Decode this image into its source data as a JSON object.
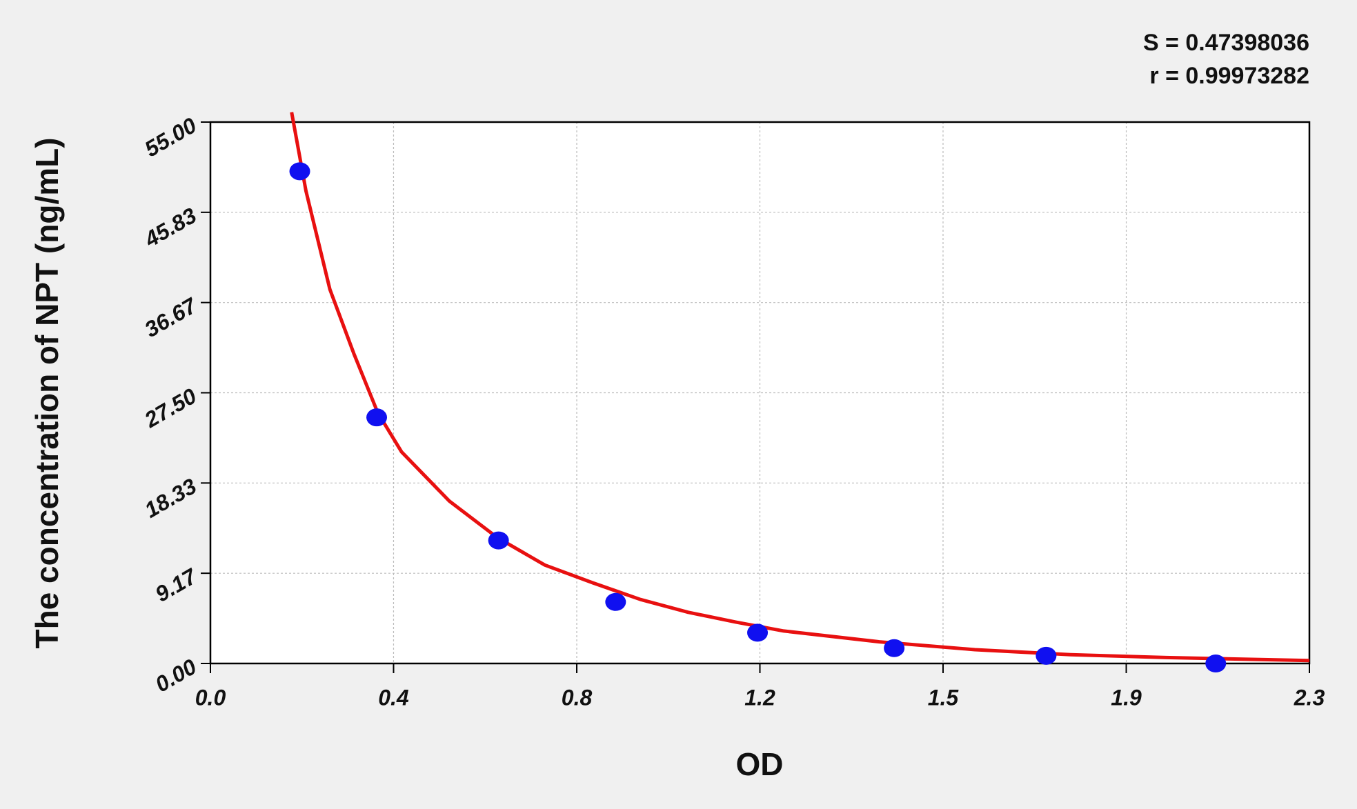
{
  "chart_data": {
    "type": "scatter",
    "x_label": "OD",
    "y_label": "The concentration of NPT (ng/mL)",
    "annotations": [
      "S = 0.47398036",
      "r = 0.99973282"
    ],
    "xlim": [
      0,
      2.3
    ],
    "ylim": [
      0,
      55
    ],
    "xticks": [
      {
        "value": 0,
        "label": "0.0"
      },
      {
        "value": 0.3833,
        "label": "0.4"
      },
      {
        "value": 0.7667,
        "label": "0.8"
      },
      {
        "value": 1.15,
        "label": "1.2"
      },
      {
        "value": 1.5333,
        "label": "1.5"
      },
      {
        "value": 1.9167,
        "label": "1.9"
      },
      2.3
    ],
    "yticks": [
      {
        "value": 0,
        "label": "0.00"
      },
      {
        "value": 9.1667,
        "label": "9.17"
      },
      {
        "value": 18.3333,
        "label": "18.33"
      },
      {
        "value": 27.5,
        "label": "27.50"
      },
      {
        "value": 36.6667,
        "label": "36.67"
      },
      {
        "value": 45.8333,
        "label": "45.83"
      },
      {
        "value": 55,
        "label": "55.00"
      }
    ],
    "grid": true,
    "series": [
      {
        "type": "scatter",
        "color": "#1010f0",
        "x": [
          0.187,
          0.348,
          0.603,
          0.848,
          1.145,
          1.431,
          1.749,
          2.104
        ],
        "values": [
          50,
          25,
          12.5,
          6.25,
          3.125,
          1.56,
          0.78,
          0
        ]
      },
      {
        "type": "line",
        "color": "#e81010",
        "x": [
          0.17,
          0.2,
          0.25,
          0.3,
          0.35,
          0.4,
          0.5,
          0.6,
          0.7,
          0.8,
          0.9,
          1.0,
          1.1,
          1.2,
          1.4,
          1.6,
          1.8,
          2.0,
          2.3
        ],
        "values": [
          56,
          48,
          38,
          31.5,
          25.5,
          21.5,
          16.5,
          12.8,
          10,
          8.2,
          6.5,
          5.2,
          4.2,
          3.3,
          2.2,
          1.4,
          0.9,
          0.6,
          0.3
        ]
      }
    ]
  }
}
